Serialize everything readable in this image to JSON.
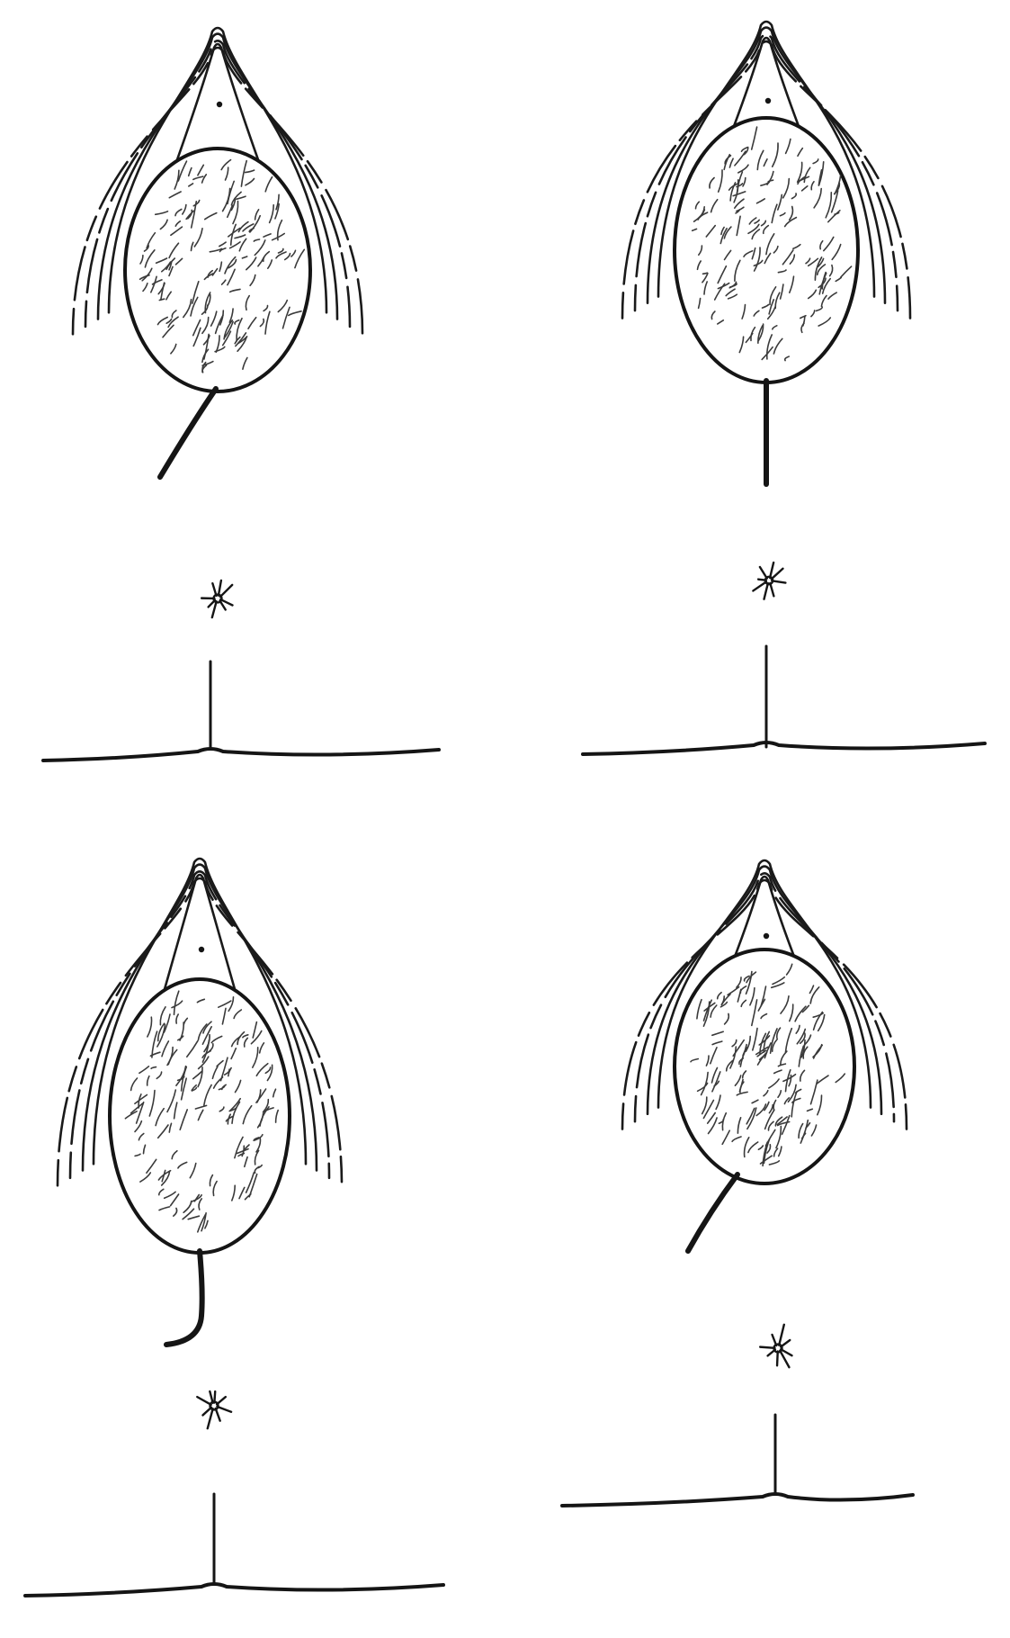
{
  "figure": {
    "panels": [
      {
        "id": "top-left",
        "cord": "oblique-left"
      },
      {
        "id": "top-right",
        "cord": "vertical"
      },
      {
        "id": "bottom-left",
        "cord": "hooked-left"
      },
      {
        "id": "bottom-right",
        "cord": "oblique-left"
      }
    ],
    "colors": {
      "ink": "#151515",
      "background": "#ffffff"
    }
  }
}
